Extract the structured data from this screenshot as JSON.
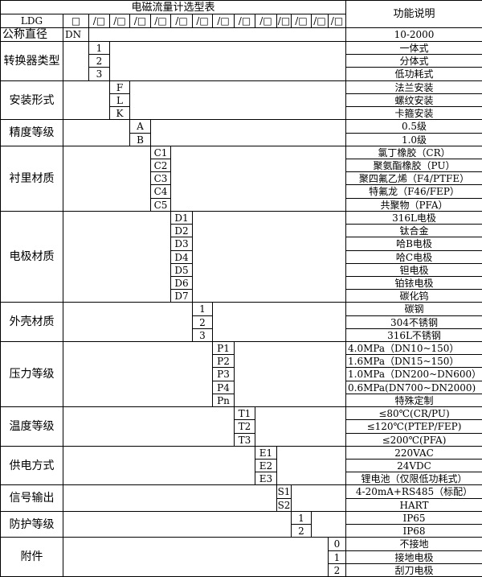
{
  "title": "电磁流量计选型表",
  "function_header": "功能说明",
  "model_row": {
    "label": "LDG",
    "first_box": "□",
    "boxes": [
      "/□",
      "/□",
      "/□",
      "/□",
      "/□",
      "/□",
      "/□",
      "/□",
      "/□",
      "/□",
      "/□",
      "/□",
      "/□"
    ]
  },
  "nominal_diameter": {
    "label": "公称直径",
    "code": "DN",
    "description": "10-2000"
  },
  "sections": [
    {
      "label": "转换器类型",
      "items": [
        {
          "code": "1",
          "description": "一体式"
        },
        {
          "code": "2",
          "description": "分体式"
        },
        {
          "code": "3",
          "description": "低功耗式"
        }
      ]
    },
    {
      "label": "安装形式",
      "items": [
        {
          "code": "F",
          "description": "法兰安装"
        },
        {
          "code": "L",
          "description": "螺纹安装"
        },
        {
          "code": "K",
          "description": "卡箍安装"
        }
      ]
    },
    {
      "label": "精度等级",
      "items": [
        {
          "code": "A",
          "description": "0.5级"
        },
        {
          "code": "B",
          "description": "1.0级"
        }
      ]
    },
    {
      "label": "衬里材质",
      "items": [
        {
          "code": "C1",
          "description": "氯丁橡胶（CR）"
        },
        {
          "code": "C2",
          "description": "聚氨酯橡胶（PU）"
        },
        {
          "code": "C3",
          "description": "聚四氟乙烯（F4/PTFE）"
        },
        {
          "code": "C4",
          "description": "特氟龙（F46/FEP）"
        },
        {
          "code": "C5",
          "description": "共聚物（PFA）"
        }
      ]
    },
    {
      "label": "电极材质",
      "items": [
        {
          "code": "D1",
          "description": "316L电极"
        },
        {
          "code": "D2",
          "description": "钛合金"
        },
        {
          "code": "D3",
          "description": "哈B电极"
        },
        {
          "code": "D4",
          "description": "哈C电极"
        },
        {
          "code": "D5",
          "description": "钽电极"
        },
        {
          "code": "D6",
          "description": "铂铱电极"
        },
        {
          "code": "D7",
          "description": "碳化钨"
        }
      ]
    },
    {
      "label": "外壳材质",
      "items": [
        {
          "code": "1",
          "description": "碳钢"
        },
        {
          "code": "2",
          "description": "304不锈钢"
        },
        {
          "code": "3",
          "description": "316L不锈钢"
        }
      ]
    },
    {
      "label": "压力等级",
      "items": [
        {
          "code": "P1",
          "description": "4.0MPa（DN10~150）",
          "align": "left"
        },
        {
          "code": "P2",
          "description": "1.6MPa（DN15~150）",
          "align": "left"
        },
        {
          "code": "P3",
          "description": "1.0MPa（DN200~DN600）",
          "align": "left"
        },
        {
          "code": "P4",
          "description": "0.6MPa(DN700~DN2000)",
          "align": "left"
        },
        {
          "code": "Pn",
          "description": "特殊定制"
        }
      ]
    },
    {
      "label": "温度等级",
      "items": [
        {
          "code": "T1",
          "description": "≤80℃(CR/PU)"
        },
        {
          "code": "T2",
          "description": "≤120℃(PTEP/FEP)"
        },
        {
          "code": "T3",
          "description": "≤200℃(PFA)"
        }
      ]
    },
    {
      "label": "供电方式",
      "items": [
        {
          "code": "E1",
          "description": "220VAC"
        },
        {
          "code": "E2",
          "description": "24VDC"
        },
        {
          "code": "E3",
          "description": "锂电池（仅限低功耗式）"
        }
      ]
    },
    {
      "label": "信号输出",
      "items": [
        {
          "code": "S1",
          "description": "4-20mA+RS485（标配）"
        },
        {
          "code": "S2",
          "description": "HART"
        }
      ]
    },
    {
      "label": "防护等级",
      "items": [
        {
          "code": "1",
          "description": "IP65"
        },
        {
          "code": "2",
          "description": "IP68"
        }
      ]
    },
    {
      "label": "附件",
      "items": [
        {
          "code": "0",
          "description": "不接地"
        },
        {
          "code": "1",
          "description": "接地电极"
        },
        {
          "code": "2",
          "description": "刮刀电极"
        }
      ]
    }
  ]
}
